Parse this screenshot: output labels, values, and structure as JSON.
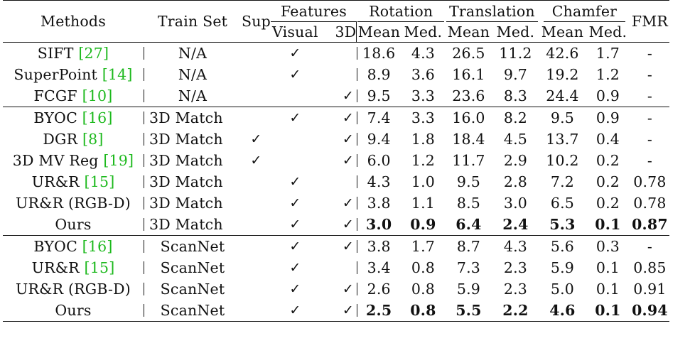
{
  "header": {
    "methods": "Methods",
    "train_set": "Train Set",
    "sup": "Sup",
    "features": "Features",
    "visual": "Visual",
    "three_d": "3D",
    "rotation": "Rotation",
    "translation": "Translation",
    "chamfer": "Chamfer",
    "fmr": "FMR",
    "mean": "Mean",
    "med": "Med."
  },
  "groups": [
    {
      "rows": [
        {
          "method": "SIFT ",
          "cite": "[27]",
          "train": "N/A",
          "sup": "",
          "visual": "✓",
          "three_d": "",
          "rot_mean": "18.6",
          "rot_med": "4.3",
          "tr_mean": "26.5",
          "tr_med": "11.2",
          "ch_mean": "42.6",
          "ch_med": "1.7",
          "fmr": "-"
        },
        {
          "method": "SuperPoint ",
          "cite": "[14]",
          "train": "N/A",
          "sup": "",
          "visual": "✓",
          "three_d": "",
          "rot_mean": "8.9",
          "rot_med": "3.6",
          "tr_mean": "16.1",
          "tr_med": "9.7",
          "ch_mean": "19.2",
          "ch_med": "1.2",
          "fmr": "-"
        },
        {
          "method": "FCGF ",
          "cite": "[10]",
          "train": "N/A",
          "sup": "",
          "visual": "",
          "three_d": "✓",
          "rot_mean": "9.5",
          "rot_med": "3.3",
          "tr_mean": "23.6",
          "tr_med": "8.3",
          "ch_mean": "24.4",
          "ch_med": "0.9",
          "fmr": "-"
        }
      ]
    },
    {
      "rows": [
        {
          "method": "BYOC ",
          "cite": "[16]",
          "train": "3D Match",
          "sup": "",
          "visual": "✓",
          "three_d": "✓",
          "rot_mean": "7.4",
          "rot_med": "3.3",
          "tr_mean": "16.0",
          "tr_med": "8.2",
          "ch_mean": "9.5",
          "ch_med": "0.9",
          "fmr": "-"
        },
        {
          "method": "DGR ",
          "cite": "[8]",
          "train": "3D Match",
          "sup": "✓",
          "visual": "",
          "three_d": "✓",
          "rot_mean": "9.4",
          "rot_med": "1.8",
          "tr_mean": "18.4",
          "tr_med": "4.5",
          "ch_mean": "13.7",
          "ch_med": "0.4",
          "fmr": "-"
        },
        {
          "method": "3D MV Reg ",
          "cite": "[19]",
          "train": "3D Match",
          "sup": "✓",
          "visual": "",
          "three_d": "✓",
          "rot_mean": "6.0",
          "rot_med": "1.2",
          "tr_mean": "11.7",
          "tr_med": "2.9",
          "ch_mean": "10.2",
          "ch_med": "0.2",
          "fmr": "-"
        },
        {
          "method": "UR&R ",
          "cite": "[15]",
          "train": "3D Match",
          "sup": "",
          "visual": "✓",
          "three_d": "",
          "rot_mean": "4.3",
          "rot_med": "1.0",
          "tr_mean": "9.5",
          "tr_med": "2.8",
          "ch_mean": "7.2",
          "ch_med": "0.2",
          "fmr": "0.78"
        },
        {
          "method": "UR&R (RGB-D)",
          "cite": "",
          "train": "3D Match",
          "sup": "",
          "visual": "✓",
          "three_d": "✓",
          "rot_mean": "3.8",
          "rot_med": "1.1",
          "tr_mean": "8.5",
          "tr_med": "3.0",
          "ch_mean": "6.5",
          "ch_med": "0.2",
          "fmr": "0.78"
        },
        {
          "method": "Ours",
          "cite": "",
          "train": "3D Match",
          "sup": "",
          "visual": "✓",
          "three_d": "✓",
          "rot_mean": "3.0",
          "rot_med": "0.9",
          "tr_mean": "6.4",
          "tr_med": "2.4",
          "ch_mean": "5.3",
          "ch_med": "0.1",
          "fmr": "0.87",
          "bold": true
        }
      ]
    },
    {
      "rows": [
        {
          "method": "BYOC ",
          "cite": "[16]",
          "train": "ScanNet",
          "sup": "",
          "visual": "✓",
          "three_d": "✓",
          "rot_mean": "3.8",
          "rot_med": "1.7",
          "tr_mean": "8.7",
          "tr_med": "4.3",
          "ch_mean": "5.6",
          "ch_med": "0.3",
          "fmr": "-"
        },
        {
          "method": "UR&R ",
          "cite": "[15]",
          "train": "ScanNet",
          "sup": "",
          "visual": "✓",
          "three_d": "",
          "rot_mean": "3.4",
          "rot_med": "0.8",
          "tr_mean": "7.3",
          "tr_med": "2.3",
          "ch_mean": "5.9",
          "ch_med": "0.1",
          "fmr": "0.85"
        },
        {
          "method": "UR&R (RGB-D)",
          "cite": "",
          "train": "ScanNet",
          "sup": "",
          "visual": "✓",
          "three_d": "✓",
          "rot_mean": "2.6",
          "rot_med": "0.8",
          "tr_mean": "5.9",
          "tr_med": "2.3",
          "ch_mean": "5.0",
          "ch_med": "0.1",
          "fmr": "0.91"
        },
        {
          "method": "Ours",
          "cite": "",
          "train": "ScanNet",
          "sup": "",
          "visual": "✓",
          "three_d": "✓",
          "rot_mean": "2.5",
          "rot_med": "0.8",
          "tr_mean": "5.5",
          "tr_med": "2.2",
          "ch_mean": "4.6",
          "ch_med": "0.1",
          "fmr": "0.94",
          "bold": true
        }
      ]
    }
  ]
}
